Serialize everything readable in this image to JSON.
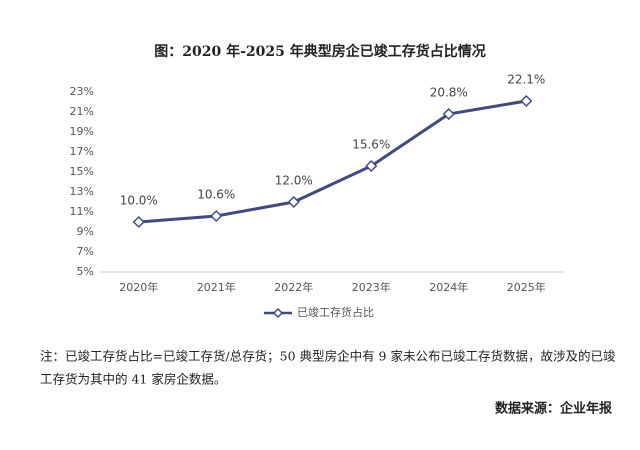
{
  "chart_data": {
    "type": "line",
    "title": "图：2020 年-2025 年典型房企已竣工存货占比情况",
    "categories": [
      "2020年",
      "2021年",
      "2022年",
      "2023年",
      "2024年",
      "2025年"
    ],
    "series": [
      {
        "name": "已竣工存货占比",
        "color": "#3f4a7f",
        "values": [
          10.0,
          10.6,
          12.0,
          15.6,
          20.8,
          22.1
        ],
        "value_labels": [
          "10.0%",
          "10.6%",
          "12.0%",
          "15.6%",
          "20.8%",
          "22.1%"
        ]
      }
    ],
    "ylim": [
      5,
      23
    ],
    "yticks": [
      {
        "value": 5,
        "label": "5%"
      },
      {
        "value": 7,
        "label": "7%"
      },
      {
        "value": 9,
        "label": "9%"
      },
      {
        "value": 11,
        "label": "11%"
      },
      {
        "value": 13,
        "label": "13%"
      },
      {
        "value": 15,
        "label": "15%"
      },
      {
        "value": 17,
        "label": "17%"
      },
      {
        "value": 19,
        "label": "19%"
      },
      {
        "value": 21,
        "label": "21%"
      },
      {
        "value": 23,
        "label": "23%"
      }
    ],
    "grid": false,
    "legend": "bottom"
  },
  "note": [
    "注：已竣工存货占比=已竣工存货/总存货；50 典型房企中有 9 家未公布已竣工存货数据，故涉及的已竣",
    "工存货为其中的 41 家房企数据。"
  ],
  "source": "数据来源：企业年报"
}
